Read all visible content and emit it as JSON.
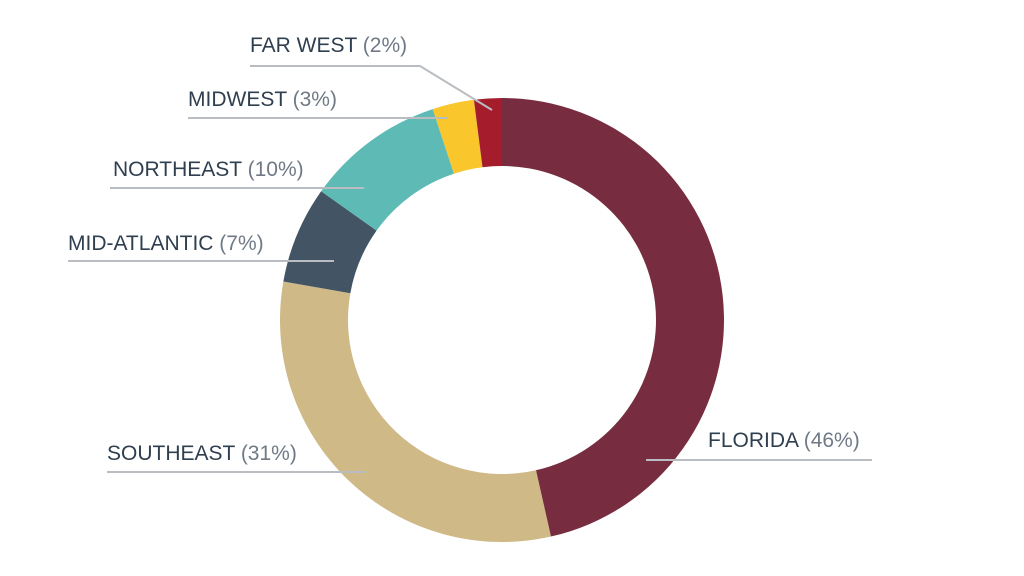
{
  "chart_data": {
    "type": "pie",
    "variant": "donut",
    "start": "top",
    "direction": "clockwise",
    "legend": "none",
    "slices": [
      {
        "label": "FLORIDA",
        "value_text": "(46%)",
        "value": 46,
        "color": "#772d3f"
      },
      {
        "label": "SOUTHEAST",
        "value_text": "(31%)",
        "value": 31,
        "color": "#cfb987"
      },
      {
        "label": "MID-ATLANTIC",
        "value_text": "(7%)",
        "value": 7,
        "color": "#435464"
      },
      {
        "label": "NORTHEAST",
        "value_text": "(10%)",
        "value": 10,
        "color": "#5dbab5"
      },
      {
        "label": "MIDWEST",
        "value_text": "(3%)",
        "value": 3,
        "color": "#f9c62c"
      },
      {
        "label": "FAR WEST",
        "value_text": "(2%)",
        "value": 2,
        "color": "#a51d2d"
      }
    ]
  }
}
